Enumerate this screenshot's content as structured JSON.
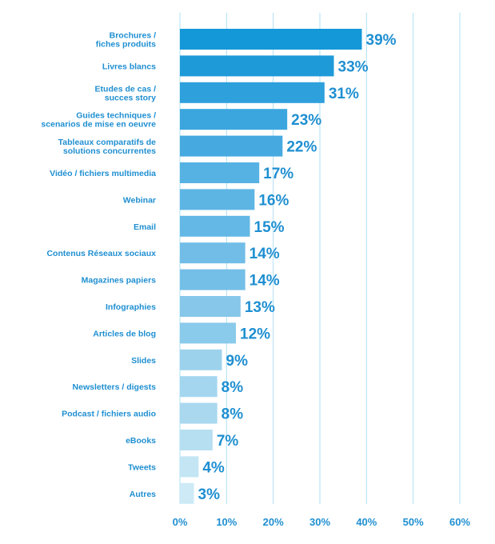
{
  "colors": {
    "text": "#1f8fd1",
    "grid": "#aee0f5",
    "bar_gradient": [
      "#1598d8",
      "#1e9ad9",
      "#2ea0dc",
      "#3ba6de",
      "#46aae0",
      "#55b2e3",
      "#5db5e4",
      "#63b8e5",
      "#71bde7",
      "#74bfe7",
      "#86c7ea",
      "#8acaea",
      "#9dd2ed",
      "#a4d6ef",
      "#a9d8ef",
      "#b6dff2",
      "#c3e5f4",
      "#cdeaf6"
    ]
  },
  "chart_data": {
    "type": "bar",
    "orientation": "horizontal",
    "categories": [
      [
        "Brochures /",
        "fiches produits"
      ],
      [
        "Livres blancs"
      ],
      [
        "Etudes de cas /",
        "succes story"
      ],
      [
        "Guides techniques /",
        "scenarios de mise en oeuvre"
      ],
      [
        "Tableaux comparatifs de",
        "solutions concurrentes"
      ],
      [
        "Vidéo / fichiers multimedia"
      ],
      [
        "Webinar"
      ],
      [
        "Email"
      ],
      [
        "Contenus Réseaux sociaux"
      ],
      [
        "Magazines papiers"
      ],
      [
        "Infographies"
      ],
      [
        "Articles de blog"
      ],
      [
        "Slides"
      ],
      [
        "Newsletters / digests"
      ],
      [
        "Podcast / fichiers audio"
      ],
      [
        "eBooks"
      ],
      [
        "Tweets"
      ],
      [
        "Autres"
      ]
    ],
    "values": [
      39,
      33,
      31,
      23,
      22,
      17,
      16,
      15,
      14,
      14,
      13,
      12,
      9,
      8,
      8,
      7,
      4,
      3
    ],
    "value_labels": [
      "39%",
      "33%",
      "31%",
      "23%",
      "22%",
      "17%",
      "16%",
      "15%",
      "14%",
      "14%",
      "13%",
      "12%",
      "9%",
      "8%",
      "8%",
      "7%",
      "4%",
      "3%"
    ],
    "xlim": [
      0,
      60
    ],
    "xticks": [
      0,
      10,
      20,
      30,
      40,
      50,
      60
    ],
    "xtick_labels": [
      "0%",
      "10%",
      "20%",
      "30%",
      "40%",
      "50%",
      "60%"
    ],
    "grid": true,
    "legend": "none"
  }
}
